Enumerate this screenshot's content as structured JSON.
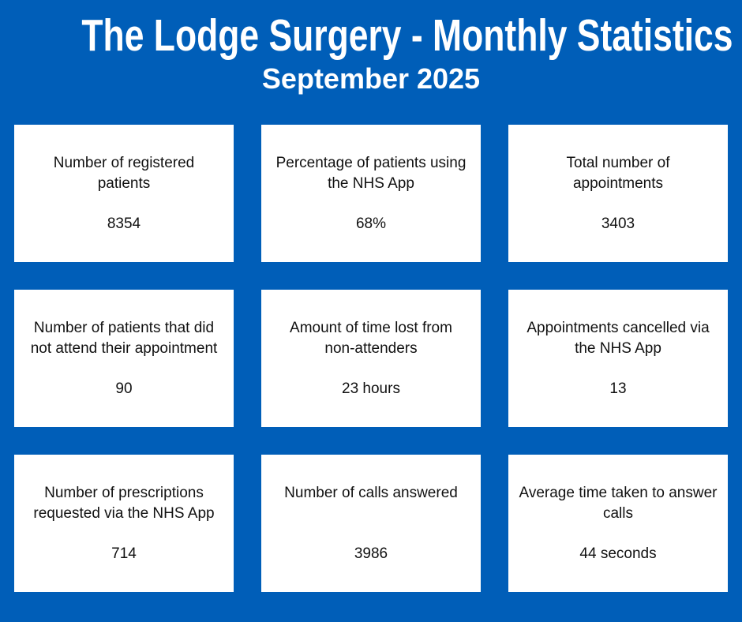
{
  "header": {
    "title": "The Lodge Surgery - Monthly Statistics",
    "subtitle": "September 2025"
  },
  "colors": {
    "background": "#005EB8",
    "card_background": "#FFFFFF",
    "card_text": "#111111",
    "header_text": "#FFFFFF"
  },
  "stats": [
    {
      "label": "Number of registered\npatients",
      "value": "8354"
    },
    {
      "label": "Percentage of patients using\nthe NHS App",
      "value": "68%"
    },
    {
      "label": "Total number of\nappointments",
      "value": "3403"
    },
    {
      "label": "Number of patients that did\nnot attend their appointment",
      "value": "90"
    },
    {
      "label": "Amount of time lost from\nnon-attenders",
      "value": "23 hours"
    },
    {
      "label": "Appointments cancelled via\nthe NHS App",
      "value": "13"
    },
    {
      "label": "Number of prescriptions\nrequested via the NHS App",
      "value": "714"
    },
    {
      "label": "Number of calls answered",
      "value": "3986"
    },
    {
      "label": "Average time taken to answer\ncalls",
      "value": "44 seconds"
    }
  ],
  "chart_data": {
    "type": "table",
    "title": "The Lodge Surgery - Monthly Statistics",
    "subtitle": "September 2025",
    "categories": [
      "Number of registered patients",
      "Percentage of patients using the NHS App",
      "Total number of appointments",
      "Number of patients that did not attend their appointment",
      "Amount of time lost from non-attenders",
      "Appointments cancelled via the NHS App",
      "Number of prescriptions requested via the NHS App",
      "Number of calls answered",
      "Average time taken to answer calls"
    ],
    "values": [
      "8354",
      "68%",
      "3403",
      "90",
      "23 hours",
      "13",
      "714",
      "3986",
      "44 seconds"
    ],
    "layout": "3x3 grid of white stat cards on blue background"
  }
}
